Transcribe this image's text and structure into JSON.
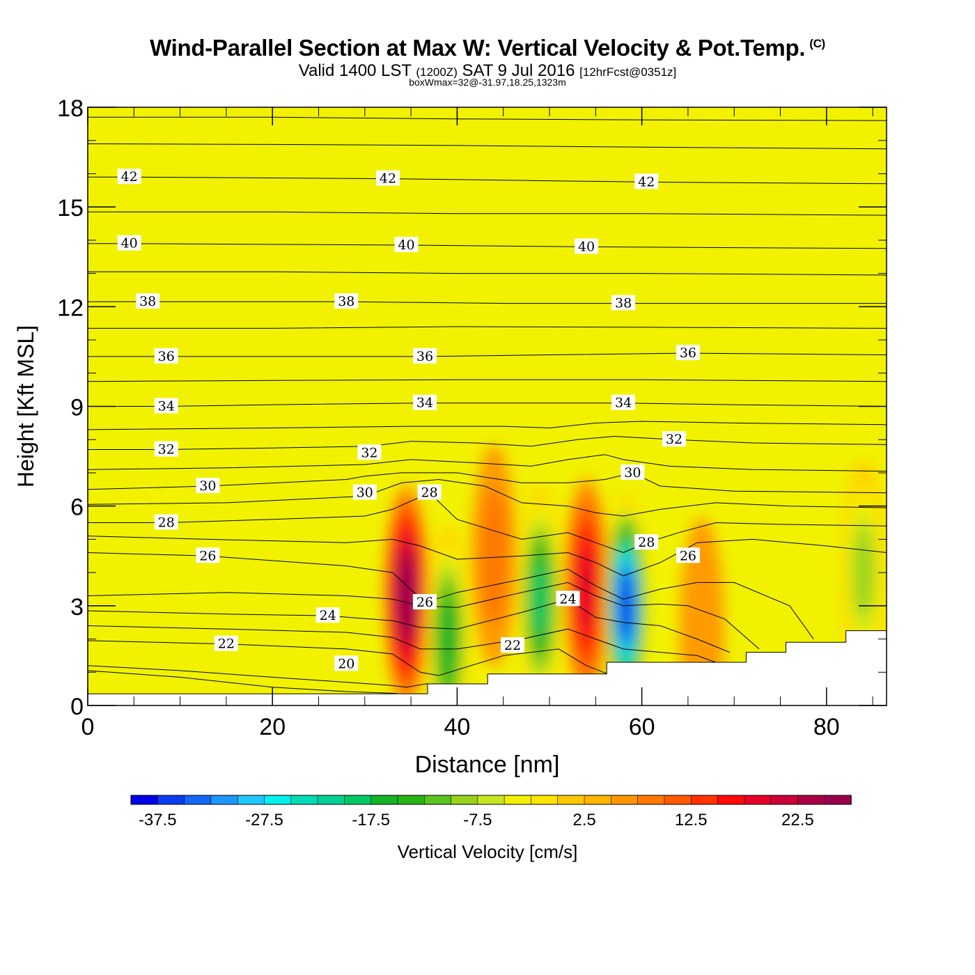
{
  "title": {
    "main": "Wind-Parallel Section at Max W: Vertical Velocity & Pot.Temp.",
    "copyright": "(C)",
    "valid_prefix": "Valid 1400 LST",
    "valid_utc": "(1200Z)",
    "valid_date": "SAT 9 Jul 2016",
    "forecast": "[12hrFcst@0351z]",
    "subtitle": "boxWmax=32@-31.97,18.25,1323m"
  },
  "colors": {
    "background_field": "#f2f200",
    "frame": "#000000",
    "terrain": "#ffffff"
  },
  "chart_data": {
    "type": "heatmap",
    "xlabel": "Distance [nm]",
    "ylabel": "Height [Kft MSL]",
    "xlim": [
      0,
      86.5
    ],
    "ylim": [
      0,
      18
    ],
    "xticks": [
      0,
      20,
      40,
      60,
      80
    ],
    "yticks": [
      0,
      3,
      6,
      9,
      12,
      15,
      18
    ],
    "colorbar": {
      "title": "Vertical Velocity [cm/s]",
      "tick_labels": [
        "-37.5",
        "-27.5",
        "-17.5",
        "-7.5",
        "2.5",
        "12.5",
        "22.5"
      ],
      "tick_values": [
        -37.5,
        -27.5,
        -17.5,
        -7.5,
        2.5,
        12.5,
        22.5
      ],
      "range": [
        -40,
        27.5
      ],
      "step": 2.5,
      "colors": [
        "#0000e6",
        "#0a3cf0",
        "#1466f5",
        "#1e96f8",
        "#1ec8ff",
        "#00f0f0",
        "#00dcb4",
        "#00d296",
        "#00c864",
        "#14b428",
        "#28b414",
        "#5ac31e",
        "#96d21e",
        "#c8e61e",
        "#f0f000",
        "#ffe600",
        "#ffc800",
        "#ffb400",
        "#ff9600",
        "#ff7800",
        "#ff5a00",
        "#ff3200",
        "#ff0a0a",
        "#e60028",
        "#cc0037",
        "#aa0046",
        "#9b0050"
      ]
    },
    "terrain": {
      "x": [
        0,
        36.8,
        36.8,
        43.3,
        43.3,
        56.2,
        56.2,
        71.3,
        71.3,
        75.6,
        75.6,
        82.1,
        82.1,
        86.5
      ],
      "height": [
        0.35,
        0.35,
        0.65,
        0.65,
        0.95,
        0.95,
        1.3,
        1.3,
        1.6,
        1.6,
        1.9,
        1.9,
        2.25,
        2.25
      ]
    },
    "vertical_velocity_cells": [
      {
        "x": 34.5,
        "y": 3.3,
        "value": 25,
        "kind": "updraft"
      },
      {
        "x": 54.0,
        "y": 3.5,
        "value": 17.5,
        "kind": "updraft"
      },
      {
        "x": 44.0,
        "y": 4.5,
        "value": 7.5,
        "kind": "updraft"
      },
      {
        "x": 58.3,
        "y": 3.0,
        "value": -37.5,
        "kind": "downdraft"
      },
      {
        "x": 49.0,
        "y": 3.2,
        "value": -20,
        "kind": "downdraft"
      },
      {
        "x": 39.0,
        "y": 2.0,
        "value": -17.5,
        "kind": "downdraft"
      },
      {
        "x": 84.0,
        "y": 4.0,
        "value": -10,
        "kind": "downdraft"
      },
      {
        "x": 66.5,
        "y": 2.3,
        "value": 5,
        "kind": "updraft"
      }
    ],
    "theta_isentropes": [
      {
        "value": 20,
        "label": "20",
        "labels_at": [
          [
            28,
            1.25
          ]
        ],
        "x": [
          0,
          10,
          20,
          28,
          32,
          33.5
        ],
        "y": [
          1.05,
          0.85,
          0.55,
          0.42,
          0.38,
          0.36
        ]
      },
      {
        "value": 21,
        "label": "",
        "labels_at": [],
        "x": [
          0,
          10,
          20,
          28,
          33,
          34.5,
          36.8
        ],
        "y": [
          1.2,
          1.05,
          0.85,
          0.7,
          0.6,
          0.55,
          0.66
        ]
      },
      {
        "value": 22,
        "label": "22",
        "labels_at": [
          [
            15,
            1.85
          ],
          [
            46,
            1.8
          ]
        ],
        "x": [
          0,
          15,
          28,
          33,
          36,
          38,
          45,
          51,
          54,
          56.2
        ],
        "y": [
          1.95,
          1.85,
          1.7,
          1.55,
          1.0,
          0.9,
          1.5,
          1.7,
          1.2,
          0.96
        ]
      },
      {
        "value": 23,
        "label": "",
        "labels_at": [],
        "x": [
          0,
          15,
          28,
          33,
          36,
          40,
          47,
          52,
          55,
          58,
          62,
          66,
          68
        ],
        "y": [
          2.4,
          2.3,
          2.2,
          2.05,
          1.7,
          1.7,
          2.0,
          2.3,
          2.0,
          1.7,
          1.6,
          1.5,
          1.3
        ]
      },
      {
        "value": 24,
        "label": "24",
        "labels_at": [
          [
            26,
            2.7
          ],
          [
            52,
            3.2
          ]
        ],
        "x": [
          0,
          15,
          26,
          33,
          36,
          40,
          47,
          52,
          55,
          58,
          62,
          66,
          69.5
        ],
        "y": [
          2.85,
          2.75,
          2.7,
          2.55,
          2.35,
          2.3,
          2.8,
          3.2,
          2.65,
          2.5,
          2.4,
          2.0,
          1.6
        ]
      },
      {
        "value": 25,
        "label": "",
        "labels_at": [],
        "x": [
          0,
          15,
          28,
          33,
          36,
          40,
          47,
          52,
          55,
          58,
          62,
          65,
          69,
          72.7
        ],
        "y": [
          3.3,
          3.4,
          3.3,
          3.2,
          3.0,
          2.95,
          3.4,
          3.7,
          3.3,
          3.0,
          3.05,
          3.0,
          2.6,
          1.7
        ]
      },
      {
        "value": 26,
        "label": "26",
        "labels_at": [
          [
            13,
            4.5
          ],
          [
            36.5,
            3.1
          ],
          [
            65,
            4.5
          ]
        ],
        "x": [
          0,
          13,
          28,
          33,
          36.5,
          40,
          47,
          52,
          55,
          58,
          62,
          66,
          70,
          76,
          78.6
        ],
        "y": [
          4.6,
          4.5,
          4.2,
          4.0,
          3.1,
          3.4,
          3.8,
          4.1,
          3.6,
          3.2,
          3.5,
          3.7,
          3.7,
          3.0,
          2.0
        ]
      },
      {
        "value": 27,
        "label": "",
        "labels_at": [],
        "x": [
          0,
          13,
          28,
          33,
          36,
          40,
          47,
          52,
          55,
          58,
          62,
          66,
          72,
          80,
          86.5
        ],
        "y": [
          5.1,
          5.0,
          4.9,
          5.0,
          4.8,
          4.4,
          4.5,
          4.6,
          4.3,
          3.9,
          4.3,
          4.9,
          5.0,
          4.8,
          4.6
        ]
      },
      {
        "value": 28,
        "label": "28",
        "labels_at": [
          [
            8.5,
            5.5
          ],
          [
            37,
            6.4
          ],
          [
            60.5,
            4.9
          ]
        ],
        "x": [
          0,
          8.5,
          20,
          30,
          33,
          37,
          40,
          47,
          52,
          55,
          58,
          60.5,
          64,
          68,
          75,
          86.5
        ],
        "y": [
          5.5,
          5.5,
          5.6,
          5.7,
          5.9,
          6.4,
          5.6,
          5.0,
          5.2,
          4.9,
          4.6,
          4.9,
          5.2,
          5.5,
          5.45,
          5.4
        ]
      },
      {
        "value": 29,
        "label": "",
        "labels_at": [],
        "x": [
          0,
          15,
          30,
          34,
          38,
          43,
          47,
          52,
          55,
          58,
          62,
          68,
          76,
          86.5
        ],
        "y": [
          6.05,
          6.1,
          6.3,
          6.7,
          6.8,
          6.6,
          6.1,
          6.0,
          5.8,
          5.7,
          5.9,
          6.1,
          6.0,
          5.95
        ]
      },
      {
        "value": 30,
        "label": "30",
        "labels_at": [
          [
            13,
            6.6
          ],
          [
            30,
            6.4
          ],
          [
            59,
            7.0
          ]
        ],
        "x": [
          0,
          13,
          28,
          30,
          34,
          40,
          47,
          52,
          56,
          59,
          62,
          70,
          86.5
        ],
        "y": [
          6.5,
          6.6,
          6.8,
          6.9,
          7.0,
          7.0,
          6.7,
          6.7,
          6.8,
          7.0,
          6.6,
          6.45,
          6.4
        ]
      },
      {
        "value": 31,
        "label": "",
        "labels_at": [],
        "x": [
          0,
          15,
          30,
          35,
          42,
          48,
          52,
          56,
          58,
          63,
          72,
          86.5
        ],
        "y": [
          7.1,
          7.15,
          7.25,
          7.4,
          7.3,
          7.2,
          7.4,
          7.55,
          7.4,
          7.2,
          7.1,
          7.05
        ]
      },
      {
        "value": 32,
        "label": "32",
        "labels_at": [
          [
            8.5,
            7.7
          ],
          [
            30.5,
            7.6
          ],
          [
            63.5,
            8.0
          ]
        ],
        "x": [
          0,
          8.5,
          20,
          30.5,
          35,
          42,
          48,
          53,
          57,
          63.5,
          72,
          86.5
        ],
        "y": [
          7.7,
          7.7,
          7.75,
          7.8,
          7.95,
          7.9,
          7.8,
          8.0,
          8.1,
          8.0,
          7.9,
          7.85
        ]
      },
      {
        "value": 33,
        "label": "",
        "labels_at": [],
        "x": [
          0,
          20,
          35,
          45,
          50,
          55,
          60,
          70,
          86.5
        ],
        "y": [
          8.3,
          8.35,
          8.4,
          8.4,
          8.35,
          8.5,
          8.55,
          8.5,
          8.45
        ]
      },
      {
        "value": 34,
        "label": "34",
        "labels_at": [
          [
            8.5,
            9.0
          ],
          [
            36.5,
            9.1
          ],
          [
            58,
            9.1
          ]
        ],
        "x": [
          0,
          8.5,
          20,
          36.5,
          50,
          58,
          70,
          86.5
        ],
        "y": [
          9.0,
          9.0,
          9.05,
          9.1,
          9.1,
          9.1,
          9.05,
          9.0
        ]
      },
      {
        "value": 35,
        "label": "",
        "labels_at": [],
        "x": [
          0,
          20,
          40,
          60,
          86.5
        ],
        "y": [
          9.75,
          9.78,
          9.8,
          9.8,
          9.75
        ]
      },
      {
        "value": 36,
        "label": "36",
        "labels_at": [
          [
            8.5,
            10.5
          ],
          [
            36.5,
            10.5
          ],
          [
            65,
            10.6
          ]
        ],
        "x": [
          0,
          8.5,
          36.5,
          50,
          65,
          86.5
        ],
        "y": [
          10.5,
          10.5,
          10.5,
          10.55,
          10.6,
          10.55
        ]
      },
      {
        "value": 37,
        "label": "",
        "labels_at": [],
        "x": [
          0,
          20,
          40,
          60,
          86.5
        ],
        "y": [
          11.35,
          11.35,
          11.4,
          11.38,
          11.35
        ]
      },
      {
        "value": 38,
        "label": "38",
        "labels_at": [
          [
            6.5,
            12.15
          ],
          [
            28,
            12.15
          ],
          [
            58,
            12.1
          ]
        ],
        "x": [
          0,
          6.5,
          28,
          45,
          58,
          86.5
        ],
        "y": [
          12.15,
          12.15,
          12.15,
          12.1,
          12.1,
          12.1
        ]
      },
      {
        "value": 39,
        "label": "",
        "labels_at": [],
        "x": [
          0,
          20,
          40,
          60,
          86.5
        ],
        "y": [
          13.05,
          13.05,
          13.0,
          13.0,
          12.95
        ]
      },
      {
        "value": 40,
        "label": "40",
        "labels_at": [
          [
            4.5,
            13.9
          ],
          [
            34.5,
            13.85
          ],
          [
            54,
            13.8
          ]
        ],
        "x": [
          0,
          4.5,
          34.5,
          54,
          86.5
        ],
        "y": [
          13.9,
          13.9,
          13.85,
          13.8,
          13.75
        ]
      },
      {
        "value": 41,
        "label": "",
        "labels_at": [],
        "x": [
          0,
          20,
          40,
          60,
          86.5
        ],
        "y": [
          14.85,
          14.85,
          14.8,
          14.8,
          14.75
        ]
      },
      {
        "value": 42,
        "label": "42",
        "labels_at": [
          [
            4.5,
            15.9
          ],
          [
            32.5,
            15.85
          ],
          [
            60.5,
            15.75
          ]
        ],
        "x": [
          0,
          4.5,
          32.5,
          60.5,
          86.5
        ],
        "y": [
          15.9,
          15.9,
          15.85,
          15.75,
          15.7
        ]
      },
      {
        "value": 43,
        "label": "",
        "labels_at": [],
        "x": [
          0,
          20,
          40,
          60,
          86.5
        ],
        "y": [
          16.9,
          16.88,
          16.85,
          16.8,
          16.75
        ]
      },
      {
        "value": 44,
        "label": "",
        "labels_at": [],
        "x": [
          0,
          20,
          40,
          60,
          86.5
        ],
        "y": [
          17.7,
          17.7,
          17.65,
          17.62,
          17.6
        ]
      }
    ]
  }
}
